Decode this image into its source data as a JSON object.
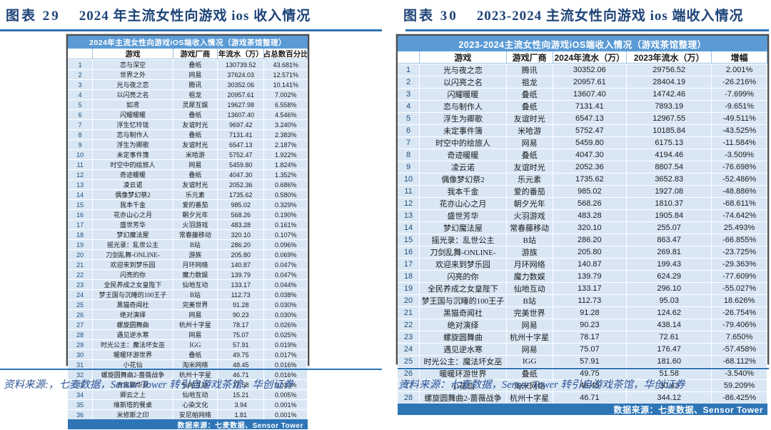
{
  "colors": {
    "accent_rule": "#2E74B5",
    "table_title_bar": "#5B9BD5",
    "table_source_bar": "#2E75B6",
    "row_fill": "#D9E7F5",
    "caption_text": "#1D4377"
  },
  "figures": [
    {
      "caption_label": "图表 29",
      "caption_title": "2024 年主流女性向游戏 ios 收入情况",
      "footnote": "资料来源:，七麦数据，Sensor Tower 转引自游戏茶馆，华创证券",
      "table": {
        "title": "2024年主流女性向游戏iOS端收入情况（游戏茶馆整理）",
        "columns": [
          "",
          "游戏",
          "游戏厂商",
          "年流水（万）",
          "占总数百分比"
        ],
        "source": "数据来源：七麦数据、Sensor Tower",
        "rows": [
          [
            "1",
            "恋与深空",
            "叠纸",
            "130739.52",
            "43.681%"
          ],
          [
            "2",
            "世界之外",
            "网易",
            "37624.03",
            "12.571%"
          ],
          [
            "3",
            "光与夜之恋",
            "腾讯",
            "30352.06",
            "10.141%"
          ],
          [
            "4",
            "以闪亮之名",
            "祖龙",
            "20957.61",
            "7.002%"
          ],
          [
            "5",
            "如鸢",
            "灵犀互娱",
            "19627.98",
            "6.558%"
          ],
          [
            "6",
            "闪耀暖暖",
            "叠纸",
            "13607.40",
            "4.546%"
          ],
          [
            "7",
            "浮生忆玲珑",
            "友谊时光",
            "9697.42",
            "3.240%"
          ],
          [
            "8",
            "恋与制作人",
            "叠纸",
            "7131.41",
            "2.383%"
          ],
          [
            "9",
            "浮生为卿歌",
            "友谊时光",
            "6547.13",
            "2.187%"
          ],
          [
            "10",
            "未定事件簿",
            "米哈游",
            "5752.47",
            "1.922%"
          ],
          [
            "11",
            "时空中的绘旅人",
            "网易",
            "5459.80",
            "1.824%"
          ],
          [
            "12",
            "奇迹暖暖",
            "叠纸",
            "4047.30",
            "1.352%"
          ],
          [
            "13",
            "凌云诺",
            "友谊时光",
            "2052.36",
            "0.686%"
          ],
          [
            "14",
            "偶像梦幻祭2",
            "乐元素",
            "1735.62",
            "0.580%"
          ],
          [
            "15",
            "我本千金",
            "爱的番茄",
            "985.02",
            "0.329%"
          ],
          [
            "16",
            "花亦山心之月",
            "朝夕光年",
            "568.26",
            "0.190%"
          ],
          [
            "17",
            "盛世芳华",
            "火羽游戏",
            "483.28",
            "0.161%"
          ],
          [
            "18",
            "梦幻魔法屋",
            "常春藤移动",
            "320.10",
            "0.107%"
          ],
          [
            "19",
            "摇光录：乱世公主",
            "B站",
            "286.20",
            "0.096%"
          ],
          [
            "20",
            "刀剑乱舞-ONLINE-",
            "游族",
            "205.80",
            "0.069%"
          ],
          [
            "21",
            "欢迎来到梦乐园",
            "月环网络",
            "140.87",
            "0.047%"
          ],
          [
            "22",
            "闪亮的你",
            "魔力数娱",
            "139.79",
            "0.047%"
          ],
          [
            "23",
            "全民养成之女皇陛下",
            "仙地互动",
            "133.17",
            "0.044%"
          ],
          [
            "24",
            "梦王国与沉睡的100王子",
            "B站",
            "112.73",
            "0.038%"
          ],
          [
            "25",
            "黑猫奇闻社",
            "完美世界",
            "91.28",
            "0.030%"
          ],
          [
            "26",
            "绝对演绎",
            "网易",
            "90.23",
            "0.030%"
          ],
          [
            "27",
            "螺旋圆舞曲",
            "杭州十字星",
            "78.17",
            "0.026%"
          ],
          [
            "28",
            "遇见逆水寒",
            "网易",
            "75.07",
            "0.025%"
          ],
          [
            "29",
            "时光公主：魔法坏女巫",
            "IGG",
            "57.91",
            "0.019%"
          ],
          [
            "30",
            "暖暖环游世界",
            "叠纸",
            "49.75",
            "0.017%"
          ],
          [
            "31",
            "小花仙",
            "淘米网络",
            "48.45",
            "0.016%"
          ],
          [
            "32",
            "螺旋圆舞曲2-蔷薇战争",
            "杭州十字星",
            "46.71",
            "0.016%"
          ],
          [
            "33",
            "青鸾繁华录",
            "仙地互动",
            "37.58",
            "0.013%"
          ],
          [
            "34",
            "卿云之上",
            "仙地互动",
            "15.21",
            "0.005%"
          ],
          [
            "35",
            "维斯塔的餐桌",
            "心染文化",
            "3.94",
            "0.001%"
          ],
          [
            "36",
            "米修斯之印",
            "安尼帕网络",
            "1.81",
            "0.001%"
          ]
        ]
      }
    },
    {
      "caption_label": "图表 30",
      "caption_title": "2023-2024 主流女性向游戏 ios 端收入情况",
      "footnote": "资料来源：七麦数据，Sensor Tower 转引自游戏茶馆，华创证券",
      "table": {
        "title": "2023-2024主流女性向游戏iOS端收入情况（游戏茶馆整理）",
        "columns": [
          "",
          "游戏",
          "游戏厂商",
          "2024年流水（万）",
          "2023年流水（万）",
          "增幅"
        ],
        "source": "数据来源：七麦数据、Sensor Tower",
        "rows": [
          [
            "1",
            "光与夜之恋",
            "腾讯",
            "30352.06",
            "29756.52",
            "2.001%"
          ],
          [
            "2",
            "以闪亮之名",
            "祖龙",
            "20957.61",
            "28404.19",
            "-26.216%"
          ],
          [
            "3",
            "闪耀暖暖",
            "叠纸",
            "13607.40",
            "14742.46",
            "-7.699%"
          ],
          [
            "4",
            "恋与制作人",
            "叠纸",
            "7131.41",
            "7893.19",
            "-9.651%"
          ],
          [
            "5",
            "浮生为卿歌",
            "友谊时光",
            "6547.13",
            "12967.55",
            "-49.511%"
          ],
          [
            "6",
            "未定事件簿",
            "米哈游",
            "5752.47",
            "10185.84",
            "-43.525%"
          ],
          [
            "7",
            "时空中的绘旅人",
            "网易",
            "5459.80",
            "6175.13",
            "-11.584%"
          ],
          [
            "8",
            "奇迹暖暖",
            "叠纸",
            "4047.30",
            "4194.46",
            "-3.509%"
          ],
          [
            "9",
            "凌云诺",
            "友谊时光",
            "2052.36",
            "8807.54",
            "-76.698%"
          ],
          [
            "10",
            "偶像梦幻祭2",
            "乐元素",
            "1735.62",
            "3652.83",
            "-52.486%"
          ],
          [
            "11",
            "我本千金",
            "爱的番茄",
            "985.02",
            "1927.08",
            "-48.886%"
          ],
          [
            "12",
            "花亦山心之月",
            "朝夕光年",
            "568.26",
            "1810.37",
            "-68.611%"
          ],
          [
            "13",
            "盛世芳华",
            "火羽游戏",
            "483.28",
            "1905.84",
            "-74.642%"
          ],
          [
            "14",
            "梦幻魔法屋",
            "常春藤移动",
            "320.10",
            "255.07",
            "25.493%"
          ],
          [
            "15",
            "摇光录：乱世公主",
            "B站",
            "286.20",
            "863.47",
            "-66.855%"
          ],
          [
            "16",
            "刀剑乱舞-ONLINE-",
            "游族",
            "205.80",
            "269.81",
            "-23.725%"
          ],
          [
            "17",
            "欢迎来到梦乐园",
            "月环网络",
            "140.87",
            "199.43",
            "-29.363%"
          ],
          [
            "18",
            "闪亮的你",
            "魔力数娱",
            "139.79",
            "624.29",
            "-77.609%"
          ],
          [
            "19",
            "全民养成之女皇陛下",
            "仙地互动",
            "133.17",
            "296.10",
            "-55.027%"
          ],
          [
            "20",
            "梦王国与沉睡的100王子",
            "B站",
            "112.73",
            "95.03",
            "18.626%"
          ],
          [
            "21",
            "黑猫奇闻社",
            "完美世界",
            "91.28",
            "124.62",
            "-26.754%"
          ],
          [
            "22",
            "绝对演绎",
            "网易",
            "90.23",
            "438.14",
            "-79.406%"
          ],
          [
            "23",
            "螺旋圆舞曲",
            "杭州十字星",
            "78.17",
            "72.61",
            "7.650%"
          ],
          [
            "24",
            "遇见逆水寒",
            "网易",
            "75.07",
            "176.47",
            "-57.458%"
          ],
          [
            "25",
            "时光公主：魔法坏女巫",
            "IGG",
            "57.91",
            "181.60",
            "-68.112%"
          ],
          [
            "26",
            "暖暖环游世界",
            "叠纸",
            "49.75",
            "51.58",
            "-3.540%"
          ],
          [
            "27",
            "小花仙",
            "淘米网络",
            "48.45",
            "30.43",
            "59.209%"
          ],
          [
            "28",
            "螺旋圆舞曲2-蔷薇战争",
            "杭州十字星",
            "46.71",
            "344.12",
            "-86.425%"
          ]
        ]
      }
    }
  ]
}
